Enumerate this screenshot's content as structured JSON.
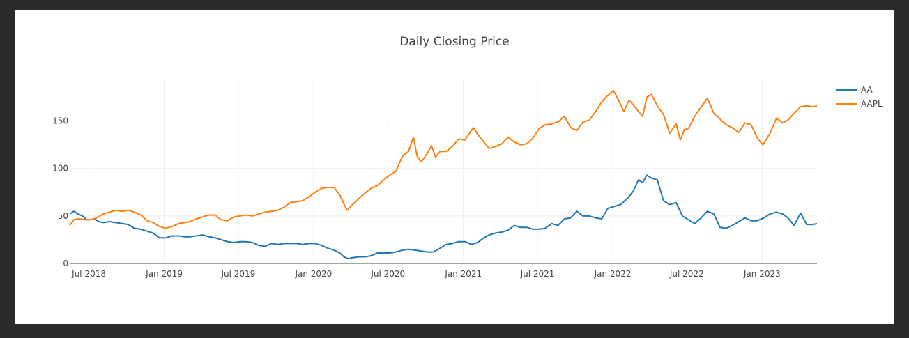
{
  "chart_data": {
    "type": "line",
    "title": "Daily Closing Price",
    "xlabel": "",
    "ylabel": "",
    "x_range": [
      "2018-05-15",
      "2023-05-15"
    ],
    "ylim": [
      0,
      193
    ],
    "x_ticks": [
      {
        "date": "2018-07-01",
        "label": "Jul 2018"
      },
      {
        "date": "2019-01-01",
        "label": "Jan 2019"
      },
      {
        "date": "2019-07-01",
        "label": "Jul 2019"
      },
      {
        "date": "2020-01-01",
        "label": "Jan 2020"
      },
      {
        "date": "2020-07-01",
        "label": "Jul 2020"
      },
      {
        "date": "2021-01-01",
        "label": "Jan 2021"
      },
      {
        "date": "2021-07-01",
        "label": "Jul 2021"
      },
      {
        "date": "2022-01-01",
        "label": "Jan 2022"
      },
      {
        "date": "2022-07-01",
        "label": "Jul 2022"
      },
      {
        "date": "2023-01-01",
        "label": "Jan 2023"
      }
    ],
    "y_ticks": [
      {
        "value": 0,
        "label": "0"
      },
      {
        "value": 50,
        "label": "50"
      },
      {
        "value": 100,
        "label": "100"
      },
      {
        "value": 150,
        "label": "150"
      }
    ],
    "grid": true,
    "legend": "top-right",
    "series": [
      {
        "name": "AA",
        "color": "#1f77b4",
        "points": [
          [
            "2018-05-15",
            52
          ],
          [
            "2018-05-25",
            55
          ],
          [
            "2018-06-05",
            52
          ],
          [
            "2018-06-15",
            50
          ],
          [
            "2018-06-25",
            46
          ],
          [
            "2018-07-05",
            46
          ],
          [
            "2018-07-15",
            47
          ],
          [
            "2018-07-25",
            44
          ],
          [
            "2018-08-05",
            43
          ],
          [
            "2018-08-20",
            44
          ],
          [
            "2018-09-05",
            43
          ],
          [
            "2018-09-20",
            42
          ],
          [
            "2018-10-05",
            41
          ],
          [
            "2018-10-20",
            37
          ],
          [
            "2018-11-05",
            36
          ],
          [
            "2018-11-20",
            34
          ],
          [
            "2018-12-05",
            32
          ],
          [
            "2018-12-20",
            27
          ],
          [
            "2019-01-05",
            27
          ],
          [
            "2019-01-20",
            29
          ],
          [
            "2019-02-05",
            29
          ],
          [
            "2019-02-20",
            28
          ],
          [
            "2019-03-05",
            28
          ],
          [
            "2019-03-20",
            29
          ],
          [
            "2019-04-05",
            30
          ],
          [
            "2019-04-20",
            28
          ],
          [
            "2019-05-05",
            27
          ],
          [
            "2019-05-20",
            25
          ],
          [
            "2019-06-05",
            23
          ],
          [
            "2019-06-20",
            22
          ],
          [
            "2019-07-05",
            23
          ],
          [
            "2019-07-20",
            23
          ],
          [
            "2019-08-05",
            22
          ],
          [
            "2019-08-20",
            19
          ],
          [
            "2019-09-05",
            18
          ],
          [
            "2019-09-20",
            21
          ],
          [
            "2019-10-05",
            20
          ],
          [
            "2019-10-20",
            21
          ],
          [
            "2019-11-05",
            21
          ],
          [
            "2019-11-20",
            21
          ],
          [
            "2019-12-05",
            20
          ],
          [
            "2019-12-20",
            21
          ],
          [
            "2020-01-05",
            21
          ],
          [
            "2020-01-20",
            19
          ],
          [
            "2020-02-05",
            16
          ],
          [
            "2020-02-20",
            14
          ],
          [
            "2020-03-05",
            11
          ],
          [
            "2020-03-15",
            7
          ],
          [
            "2020-03-25",
            5
          ],
          [
            "2020-04-05",
            6
          ],
          [
            "2020-04-20",
            7
          ],
          [
            "2020-05-05",
            7
          ],
          [
            "2020-05-20",
            8
          ],
          [
            "2020-06-05",
            11
          ],
          [
            "2020-06-20",
            11
          ],
          [
            "2020-07-05",
            11
          ],
          [
            "2020-07-20",
            12
          ],
          [
            "2020-08-05",
            14
          ],
          [
            "2020-08-20",
            15
          ],
          [
            "2020-09-05",
            14
          ],
          [
            "2020-09-20",
            13
          ],
          [
            "2020-10-05",
            12
          ],
          [
            "2020-10-20",
            12
          ],
          [
            "2020-11-05",
            16
          ],
          [
            "2020-11-20",
            20
          ],
          [
            "2020-12-05",
            21
          ],
          [
            "2020-12-20",
            23
          ],
          [
            "2021-01-05",
            23
          ],
          [
            "2021-01-20",
            20
          ],
          [
            "2021-02-05",
            22
          ],
          [
            "2021-02-20",
            27
          ],
          [
            "2021-03-05",
            30
          ],
          [
            "2021-03-20",
            32
          ],
          [
            "2021-04-05",
            33
          ],
          [
            "2021-04-20",
            35
          ],
          [
            "2021-05-05",
            40
          ],
          [
            "2021-05-20",
            38
          ],
          [
            "2021-06-05",
            38
          ],
          [
            "2021-06-20",
            36
          ],
          [
            "2021-07-05",
            36
          ],
          [
            "2021-07-20",
            37
          ],
          [
            "2021-08-05",
            42
          ],
          [
            "2021-08-20",
            40
          ],
          [
            "2021-09-05",
            47
          ],
          [
            "2021-09-20",
            48
          ],
          [
            "2021-10-05",
            55
          ],
          [
            "2021-10-20",
            50
          ],
          [
            "2021-11-05",
            50
          ],
          [
            "2021-11-20",
            48
          ],
          [
            "2021-12-05",
            47
          ],
          [
            "2021-12-20",
            58
          ],
          [
            "2022-01-05",
            60
          ],
          [
            "2022-01-20",
            62
          ],
          [
            "2022-02-05",
            68
          ],
          [
            "2022-02-20",
            76
          ],
          [
            "2022-03-05",
            88
          ],
          [
            "2022-03-15",
            85
          ],
          [
            "2022-03-25",
            93
          ],
          [
            "2022-04-05",
            90
          ],
          [
            "2022-04-20",
            88
          ],
          [
            "2022-05-05",
            66
          ],
          [
            "2022-05-20",
            62
          ],
          [
            "2022-06-05",
            64
          ],
          [
            "2022-06-20",
            50
          ],
          [
            "2022-07-05",
            46
          ],
          [
            "2022-07-20",
            42
          ],
          [
            "2022-08-05",
            48
          ],
          [
            "2022-08-20",
            55
          ],
          [
            "2022-09-05",
            52
          ],
          [
            "2022-09-20",
            38
          ],
          [
            "2022-10-05",
            37
          ],
          [
            "2022-10-20",
            40
          ],
          [
            "2022-11-05",
            44
          ],
          [
            "2022-11-20",
            48
          ],
          [
            "2022-12-05",
            45
          ],
          [
            "2022-12-20",
            45
          ],
          [
            "2023-01-05",
            48
          ],
          [
            "2023-01-20",
            52
          ],
          [
            "2023-02-05",
            54
          ],
          [
            "2023-02-20",
            52
          ],
          [
            "2023-03-05",
            48
          ],
          [
            "2023-03-20",
            40
          ],
          [
            "2023-04-05",
            53
          ],
          [
            "2023-04-20",
            41
          ],
          [
            "2023-05-05",
            41
          ],
          [
            "2023-05-15",
            42
          ]
        ]
      },
      {
        "name": "AAPL",
        "color": "#ff7f0e",
        "points": [
          [
            "2018-05-15",
            40
          ],
          [
            "2018-05-25",
            46
          ],
          [
            "2018-06-05",
            47
          ],
          [
            "2018-06-20",
            46
          ],
          [
            "2018-07-05",
            46
          ],
          [
            "2018-07-20",
            48
          ],
          [
            "2018-08-05",
            52
          ],
          [
            "2018-08-20",
            54
          ],
          [
            "2018-09-05",
            56
          ],
          [
            "2018-09-20",
            55
          ],
          [
            "2018-10-05",
            56
          ],
          [
            "2018-10-20",
            54
          ],
          [
            "2018-11-05",
            51
          ],
          [
            "2018-11-20",
            45
          ],
          [
            "2018-12-05",
            43
          ],
          [
            "2018-12-20",
            39
          ],
          [
            "2019-01-05",
            37
          ],
          [
            "2019-01-20",
            39
          ],
          [
            "2019-02-05",
            42
          ],
          [
            "2019-02-20",
            43
          ],
          [
            "2019-03-05",
            44
          ],
          [
            "2019-03-20",
            47
          ],
          [
            "2019-04-05",
            49
          ],
          [
            "2019-04-20",
            51
          ],
          [
            "2019-05-05",
            51
          ],
          [
            "2019-05-20",
            46
          ],
          [
            "2019-06-05",
            45
          ],
          [
            "2019-06-20",
            49
          ],
          [
            "2019-07-05",
            50
          ],
          [
            "2019-07-20",
            51
          ],
          [
            "2019-08-05",
            50
          ],
          [
            "2019-08-20",
            52
          ],
          [
            "2019-09-05",
            54
          ],
          [
            "2019-09-20",
            55
          ],
          [
            "2019-10-05",
            56
          ],
          [
            "2019-10-20",
            59
          ],
          [
            "2019-11-05",
            64
          ],
          [
            "2019-11-20",
            65
          ],
          [
            "2019-12-05",
            66
          ],
          [
            "2019-12-20",
            70
          ],
          [
            "2020-01-05",
            75
          ],
          [
            "2020-01-20",
            79
          ],
          [
            "2020-02-05",
            80
          ],
          [
            "2020-02-20",
            80
          ],
          [
            "2020-03-05",
            72
          ],
          [
            "2020-03-15",
            63
          ],
          [
            "2020-03-23",
            56
          ],
          [
            "2020-04-05",
            62
          ],
          [
            "2020-04-20",
            68
          ],
          [
            "2020-05-05",
            74
          ],
          [
            "2020-05-20",
            79
          ],
          [
            "2020-06-05",
            82
          ],
          [
            "2020-06-20",
            88
          ],
          [
            "2020-07-05",
            93
          ],
          [
            "2020-07-20",
            97
          ],
          [
            "2020-08-05",
            113
          ],
          [
            "2020-08-20",
            118
          ],
          [
            "2020-09-01",
            133
          ],
          [
            "2020-09-10",
            113
          ],
          [
            "2020-09-20",
            107
          ],
          [
            "2020-10-05",
            116
          ],
          [
            "2020-10-15",
            124
          ],
          [
            "2020-10-25",
            112
          ],
          [
            "2020-11-05",
            118
          ],
          [
            "2020-11-20",
            118
          ],
          [
            "2020-12-05",
            123
          ],
          [
            "2020-12-20",
            131
          ],
          [
            "2021-01-05",
            130
          ],
          [
            "2021-01-25",
            143
          ],
          [
            "2021-02-05",
            136
          ],
          [
            "2021-02-20",
            128
          ],
          [
            "2021-03-05",
            121
          ],
          [
            "2021-03-20",
            123
          ],
          [
            "2021-04-05",
            126
          ],
          [
            "2021-04-20",
            133
          ],
          [
            "2021-05-05",
            128
          ],
          [
            "2021-05-20",
            125
          ],
          [
            "2021-06-05",
            126
          ],
          [
            "2021-06-20",
            132
          ],
          [
            "2021-07-05",
            142
          ],
          [
            "2021-07-20",
            146
          ],
          [
            "2021-08-05",
            147
          ],
          [
            "2021-08-20",
            149
          ],
          [
            "2021-09-05",
            155
          ],
          [
            "2021-09-20",
            143
          ],
          [
            "2021-10-05",
            140
          ],
          [
            "2021-10-20",
            149
          ],
          [
            "2021-11-05",
            151
          ],
          [
            "2021-11-20",
            160
          ],
          [
            "2021-12-05",
            170
          ],
          [
            "2021-12-15",
            175
          ],
          [
            "2022-01-03",
            182
          ],
          [
            "2022-01-15",
            172
          ],
          [
            "2022-01-28",
            160
          ],
          [
            "2022-02-10",
            172
          ],
          [
            "2022-02-20",
            167
          ],
          [
            "2022-03-05",
            160
          ],
          [
            "2022-03-15",
            155
          ],
          [
            "2022-03-25",
            175
          ],
          [
            "2022-04-05",
            178
          ],
          [
            "2022-04-20",
            166
          ],
          [
            "2022-05-05",
            157
          ],
          [
            "2022-05-20",
            137
          ],
          [
            "2022-06-05",
            147
          ],
          [
            "2022-06-15",
            130
          ],
          [
            "2022-06-25",
            141
          ],
          [
            "2022-07-05",
            142
          ],
          [
            "2022-07-20",
            155
          ],
          [
            "2022-08-05",
            165
          ],
          [
            "2022-08-20",
            174
          ],
          [
            "2022-09-05",
            158
          ],
          [
            "2022-09-20",
            152
          ],
          [
            "2022-10-05",
            146
          ],
          [
            "2022-10-20",
            143
          ],
          [
            "2022-11-05",
            138
          ],
          [
            "2022-11-20",
            148
          ],
          [
            "2022-12-05",
            146
          ],
          [
            "2022-12-20",
            132
          ],
          [
            "2023-01-03",
            125
          ],
          [
            "2023-01-20",
            137
          ],
          [
            "2023-02-05",
            153
          ],
          [
            "2023-02-20",
            148
          ],
          [
            "2023-03-05",
            151
          ],
          [
            "2023-03-20",
            158
          ],
          [
            "2023-04-05",
            165
          ],
          [
            "2023-04-20",
            166
          ],
          [
            "2023-05-05",
            165
          ],
          [
            "2023-05-15",
            166
          ]
        ]
      }
    ]
  }
}
